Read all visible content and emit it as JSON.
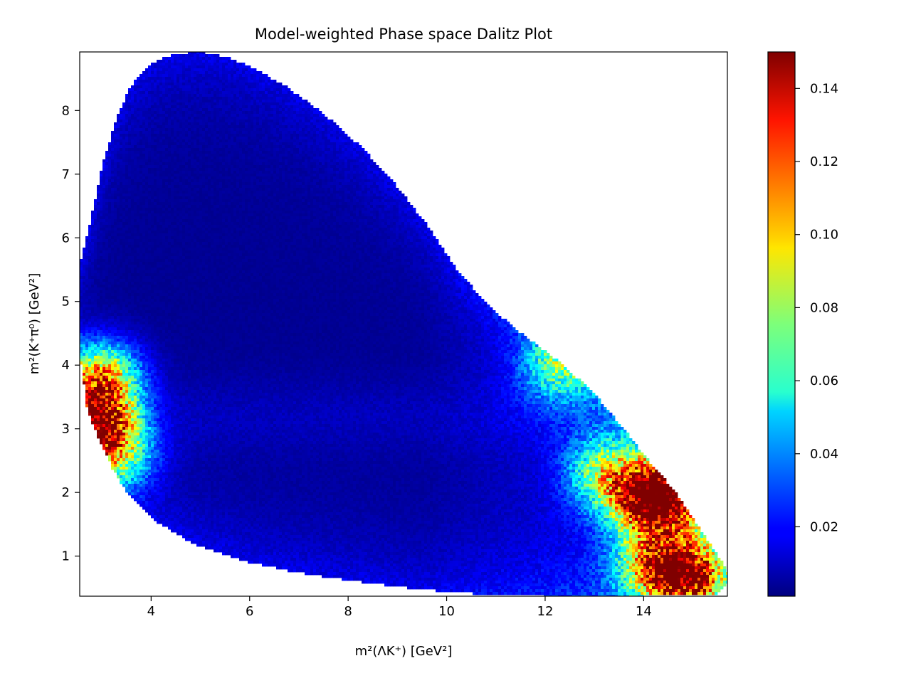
{
  "chart_data": {
    "type": "heatmap",
    "title": "Model-weighted Phase space Dalitz Plot",
    "xlabel": "m²(ΛK⁺) [GeV²]",
    "ylabel": "m²(K⁺π⁰) [GeV²]",
    "xlim": [
      2.55,
      15.7
    ],
    "ylim": [
      0.37,
      8.92
    ],
    "xticks": [
      4,
      6,
      8,
      10,
      12,
      14
    ],
    "yticks": [
      1,
      2,
      3,
      4,
      5,
      6,
      7,
      8
    ],
    "colorbar": {
      "colormap": "jet",
      "range": [
        0.001,
        0.15
      ],
      "ticks": [
        "0.02",
        "0.04",
        "0.06",
        "0.08",
        "0.10",
        "0.12",
        "0.14"
      ]
    },
    "grid": false,
    "boundary": {
      "upper_y": [
        [
          2.55,
          5.6
        ],
        [
          2.75,
          6.2
        ],
        [
          3.0,
          7.1
        ],
        [
          3.3,
          7.9
        ],
        [
          3.6,
          8.4
        ],
        [
          4.0,
          8.75
        ],
        [
          4.5,
          8.9
        ],
        [
          5.0,
          8.92
        ],
        [
          5.5,
          8.85
        ],
        [
          6.0,
          8.7
        ],
        [
          6.7,
          8.4
        ],
        [
          7.5,
          7.95
        ],
        [
          8.3,
          7.4
        ],
        [
          9.0,
          6.8
        ],
        [
          9.6,
          6.2
        ],
        [
          10.2,
          5.5
        ],
        [
          10.9,
          4.9
        ],
        [
          11.6,
          4.45
        ],
        [
          12.3,
          4.05
        ],
        [
          13.0,
          3.55
        ],
        [
          13.6,
          3.0
        ],
        [
          14.1,
          2.5
        ],
        [
          14.6,
          2.05
        ],
        [
          15.0,
          1.6
        ],
        [
          15.35,
          1.2
        ],
        [
          15.6,
          0.9
        ],
        [
          15.7,
          0.75
        ]
      ],
      "lower_y": [
        [
          2.55,
          4.2
        ],
        [
          2.7,
          3.3
        ],
        [
          2.9,
          2.9
        ],
        [
          3.2,
          2.4
        ],
        [
          3.5,
          2.0
        ],
        [
          4.0,
          1.6
        ],
        [
          4.5,
          1.35
        ],
        [
          5.0,
          1.15
        ],
        [
          6.0,
          0.9
        ],
        [
          7.0,
          0.74
        ],
        [
          8.0,
          0.62
        ],
        [
          9.0,
          0.52
        ],
        [
          10.0,
          0.44
        ],
        [
          11.0,
          0.39
        ],
        [
          12.0,
          0.37
        ],
        [
          13.0,
          0.37
        ],
        [
          14.0,
          0.37
        ],
        [
          15.0,
          0.38
        ],
        [
          15.5,
          0.4
        ],
        [
          15.7,
          0.55
        ]
      ]
    },
    "intensity_regions": [
      {
        "x": 2.9,
        "y": 3.1,
        "value": 0.15
      },
      {
        "x": 3.0,
        "y": 3.8,
        "value": 0.12
      },
      {
        "x": 3.3,
        "y": 2.6,
        "value": 0.08
      },
      {
        "x": 12.3,
        "y": 4.0,
        "value": 0.07
      },
      {
        "x": 13.2,
        "y": 2.3,
        "value": 0.08
      },
      {
        "x": 14.0,
        "y": 1.9,
        "value": 0.11
      },
      {
        "x": 14.5,
        "y": 1.95,
        "value": 0.14
      },
      {
        "x": 14.2,
        "y": 0.9,
        "value": 0.1
      },
      {
        "x": 14.9,
        "y": 0.7,
        "value": 0.15
      }
    ]
  }
}
